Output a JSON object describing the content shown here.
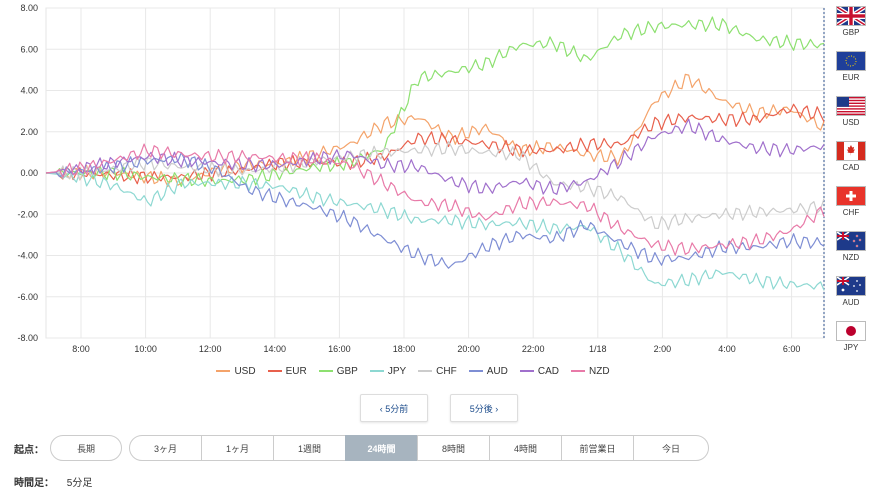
{
  "chart_data": {
    "type": "line",
    "ylim": [
      -8,
      8
    ],
    "yticks": [
      "8.00",
      "6.00",
      "4.00",
      "2.00",
      "0.00",
      "-2.00",
      "-4.00",
      "-6.00",
      "-8.00"
    ],
    "xticks": [
      "8:00",
      "10:00",
      "12:00",
      "14:00",
      "16:00",
      "18:00",
      "20:00",
      "22:00",
      "1/18",
      "2:00",
      "4:00",
      "6:00"
    ],
    "grid": true,
    "legend_position": "bottom",
    "series": [
      {
        "name": "USD",
        "color": "#f4a36a",
        "values": [
          0,
          0,
          0,
          -0.2,
          -0.4,
          0.1,
          0.4,
          0.5,
          0.9,
          1.4,
          2.4,
          2.7,
          1.7,
          2.2,
          1.1,
          1.3,
          0.9,
          0.7,
          3.5,
          4.6,
          3.5,
          2.9,
          3.1,
          2.2
        ]
      },
      {
        "name": "EUR",
        "color": "#e8604c",
        "values": [
          0,
          0,
          -0.1,
          -0.2,
          -0.2,
          0,
          0.2,
          0.5,
          0.5,
          0.5,
          0.8,
          1.7,
          1.6,
          1.4,
          1.1,
          1.1,
          1.4,
          1.4,
          2.4,
          2.7,
          2.6,
          2.6,
          3.1,
          2.8
        ]
      },
      {
        "name": "GBP",
        "color": "#8de070",
        "values": [
          0,
          0,
          0,
          -0.2,
          -0.3,
          -0.4,
          -0.3,
          0,
          0.3,
          0.5,
          1.2,
          4.6,
          4.9,
          5.3,
          6.2,
          6.3,
          5.5,
          6.7,
          7.1,
          7.2,
          7.2,
          6.5,
          6.3,
          6.2
        ]
      },
      {
        "name": "JPY",
        "color": "#8dd8d2",
        "values": [
          0,
          -0.2,
          -0.6,
          -1.4,
          -0.5,
          -0.5,
          -0.5,
          -0.7,
          -1.2,
          -1.5,
          -1.8,
          -2.3,
          -2.3,
          -2.5,
          -2.4,
          -2.7,
          -2.6,
          -3.8,
          -5.4,
          -5.2,
          -4.8,
          -5.2,
          -5.4,
          -5.5
        ]
      },
      {
        "name": "CHF",
        "color": "#cccccc",
        "values": [
          0,
          0,
          0.2,
          0.5,
          0.3,
          0.2,
          0.1,
          0.3,
          0.6,
          0.8,
          1,
          1.1,
          1.2,
          1.0,
          0.9,
          -0.5,
          -0.7,
          -1.2,
          -2.5,
          -2.2,
          -2.0,
          -1.9,
          -1.8,
          -1.6
        ]
      },
      {
        "name": "AUD",
        "color": "#7e8ed4",
        "values": [
          0,
          0.1,
          0.3,
          0.6,
          0.7,
          0.2,
          -0.8,
          -1.3,
          -1.7,
          -2.3,
          -3.2,
          -4.0,
          -4.5,
          -3.6,
          -3.0,
          -3.2,
          -2.5,
          -3.4,
          -4.2,
          -4.1,
          -3.6,
          -3.6,
          -3.3,
          -3.4
        ]
      },
      {
        "name": "CAD",
        "color": "#a070cc",
        "values": [
          0,
          0.2,
          0.5,
          0.8,
          0.6,
          0.5,
          0.4,
          0.4,
          0.7,
          0.9,
          0.4,
          0.3,
          -0.4,
          -0.8,
          -0.4,
          -0.8,
          -0.4,
          0.6,
          1.8,
          2.3,
          1.6,
          1.2,
          1.1,
          1.3
        ]
      },
      {
        "name": "NZD",
        "color": "#e87aa8",
        "values": [
          0,
          0.2,
          0.6,
          1.1,
          0.9,
          0.8,
          0.8,
          0.7,
          0.7,
          0.4,
          -0.5,
          -1.4,
          -1.6,
          -2.2,
          -1.5,
          -1.4,
          -1.6,
          -2.7,
          -3.5,
          -3.7,
          -3.5,
          -3.3,
          -2.8,
          -1.8
        ]
      }
    ]
  },
  "flags": [
    {
      "code": "GBP",
      "icon": "uk-flag"
    },
    {
      "code": "EUR",
      "icon": "eu-flag"
    },
    {
      "code": "USD",
      "icon": "us-flag"
    },
    {
      "code": "CAD",
      "icon": "canada-flag"
    },
    {
      "code": "CHF",
      "icon": "swiss-flag"
    },
    {
      "code": "NZD",
      "icon": "nz-flag"
    },
    {
      "code": "AUD",
      "icon": "australia-flag"
    },
    {
      "code": "JPY",
      "icon": "japan-flag"
    }
  ],
  "nav": {
    "prev": "‹ 5分前",
    "next": "5分後 ›"
  },
  "origin": {
    "label": "起点：",
    "long": "長期",
    "periods": [
      "3ヶ月",
      "1ヶ月",
      "1週間",
      "24時間",
      "8時間",
      "4時間",
      "前営業日",
      "今日"
    ],
    "active": "24時間"
  },
  "timeframe": {
    "label": "時間足：",
    "value": "5分足"
  }
}
